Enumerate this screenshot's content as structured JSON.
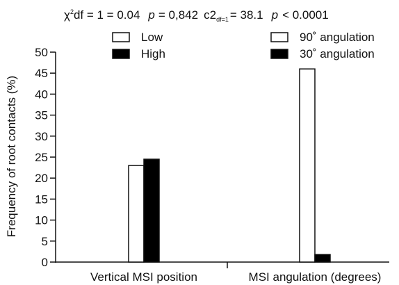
{
  "stats": {
    "test1": {
      "chi": "χ",
      "chi_sup": "2",
      "df_text": "df = 1 = 0.04",
      "p_label": "p",
      "p_value": "= 0,842"
    },
    "test2": {
      "c_text": "c2",
      "c_sub": "df=1",
      "c_value": "= 38.1",
      "p_label": "p",
      "p_value": "< 0.0001"
    }
  },
  "chart_data": {
    "type": "bar",
    "title": "",
    "xlabel": "",
    "ylabel": "Frequency of root contacts (%)",
    "ylim": [
      0,
      50
    ],
    "yticks": [
      0,
      5,
      10,
      15,
      20,
      25,
      30,
      35,
      40,
      45,
      50
    ],
    "grid": false,
    "groups": [
      {
        "label": "Vertical MSI position",
        "legend_placement": "top-left",
        "series": [
          {
            "name": "Low",
            "value": 23,
            "fill": "#ffffff"
          },
          {
            "name": "High",
            "value": 24.5,
            "fill": "#000000"
          }
        ]
      },
      {
        "label": "MSI angulation (degrees)",
        "legend_placement": "top-right",
        "series": [
          {
            "name": "90˚ angulation",
            "value": 46,
            "fill": "#ffffff"
          },
          {
            "name": "30˚ angulation",
            "value": 1.8,
            "fill": "#000000"
          }
        ]
      }
    ]
  }
}
